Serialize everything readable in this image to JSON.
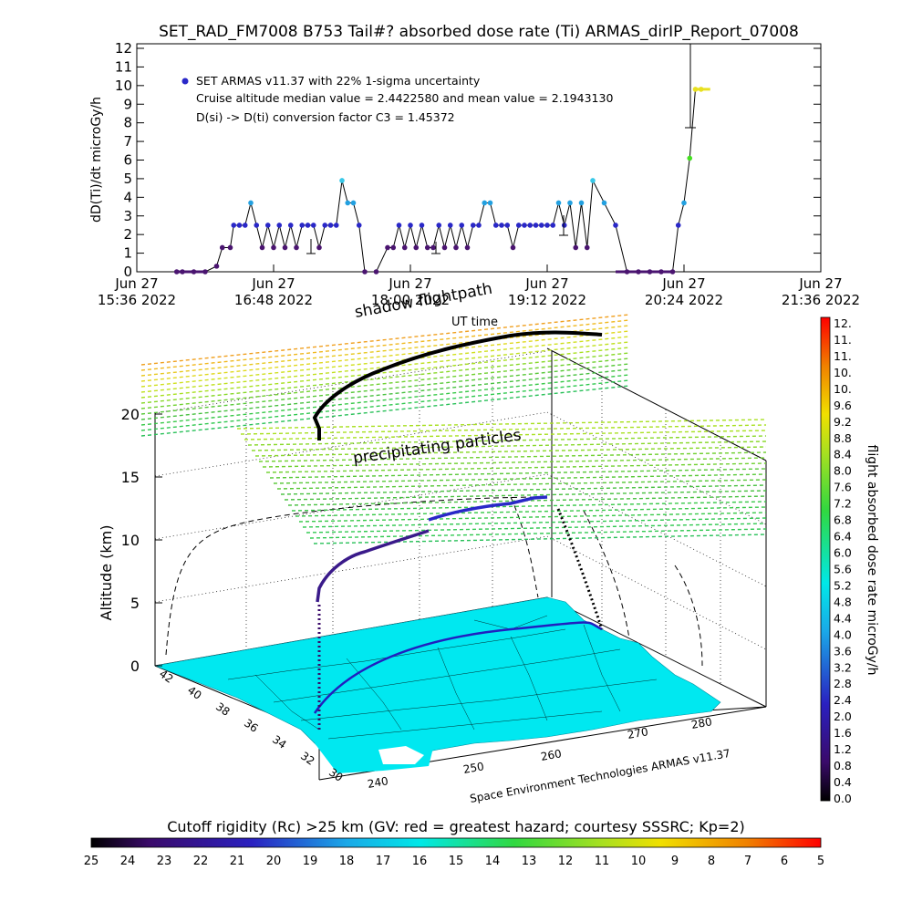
{
  "title": "SET_RAD_FM7008  B753 Tail#? absorbed dose rate (Ti) ARMAS_dirIP_Report_07008",
  "colors": {
    "flight_dark": "#202080",
    "point_blue": "#2a28c8",
    "point_purple": "#4a1470",
    "point_light": "#22b8e8",
    "point_cyan2": "#38c8e8",
    "point_green": "#44e020",
    "point_yellow": "#e8e020",
    "land": "#00e8f0",
    "axis": "#000000"
  },
  "chart_data": [
    {
      "type": "scatter",
      "ylabel": "dD(Ti)/dt microGy/h",
      "xlabel": "UT time",
      "ylim": [
        0,
        12
      ],
      "yticks": [
        "0",
        "1",
        "2",
        "3",
        "4",
        "5",
        "6",
        "7",
        "8",
        "9",
        "10",
        "11",
        "12"
      ],
      "xticks": [
        {
          "top": "Jun 27",
          "bottom": "15:36 2022"
        },
        {
          "top": "Jun 27",
          "bottom": "16:48 2022"
        },
        {
          "top": "Jun 27",
          "bottom": "18:00 2022"
        },
        {
          "top": "Jun 27",
          "bottom": "19:12 2022"
        },
        {
          "top": "Jun 27",
          "bottom": "20:24 2022"
        },
        {
          "top": "Jun 27",
          "bottom": "21:36 2022"
        }
      ],
      "xlim_hours": [
        15.6,
        21.6
      ],
      "legend": {
        "position": "top-left",
        "series_label": "SET ARMAS v11.37 with 22% 1-sigma uncertainty",
        "line2": "Cruise altitude median value = 2.4422580 and mean value = 2.1943130",
        "line3": "D(si) -> D(ti) conversion factor C3 = 1.45372"
      },
      "series": [
        {
          "x_hours": [
            15.95,
            16.0,
            16.1,
            16.2,
            16.3,
            16.35,
            16.42,
            16.45,
            16.5,
            16.55,
            16.6,
            16.65,
            16.7,
            16.75,
            16.8,
            16.85,
            16.9,
            16.95,
            17.0,
            17.05,
            17.1,
            17.15,
            17.2,
            17.25,
            17.3,
            17.35,
            17.4,
            17.45,
            17.5,
            17.55,
            17.6,
            17.7,
            17.8,
            17.85,
            17.9,
            17.95,
            18.0,
            18.05,
            18.1,
            18.15,
            18.2,
            18.25,
            18.3,
            18.35,
            18.4,
            18.45,
            18.5,
            18.55,
            18.6,
            18.65,
            18.7,
            18.75,
            18.8,
            18.85,
            18.9,
            18.95,
            19.0,
            19.05,
            19.1,
            19.15,
            19.2,
            19.25,
            19.3,
            19.35,
            19.4,
            19.45,
            19.5,
            19.55,
            19.6,
            19.7,
            19.8,
            19.9,
            20.0,
            20.1,
            20.2,
            20.3,
            20.35,
            20.4,
            20.45,
            20.5,
            20.55
          ],
          "y": [
            0,
            0,
            0,
            0,
            0.3,
            1.3,
            1.3,
            2.5,
            2.5,
            2.5,
            3.7,
            2.5,
            1.3,
            2.5,
            1.3,
            2.5,
            1.3,
            2.5,
            1.3,
            2.5,
            2.5,
            2.5,
            1.3,
            2.5,
            2.5,
            2.5,
            4.9,
            3.7,
            3.7,
            2.5,
            0,
            0,
            1.3,
            1.3,
            2.5,
            1.3,
            2.5,
            1.3,
            2.5,
            1.3,
            1.3,
            2.5,
            1.3,
            2.5,
            1.3,
            2.5,
            1.3,
            2.5,
            2.5,
            3.7,
            3.7,
            2.5,
            2.5,
            2.5,
            1.3,
            2.5,
            2.5,
            2.5,
            2.5,
            2.5,
            2.5,
            2.5,
            3.7,
            2.5,
            3.7,
            1.3,
            3.7,
            1.3,
            4.9,
            3.7,
            2.5,
            0,
            0,
            0,
            0,
            0,
            2.5,
            3.7,
            6.1,
            9.8,
            9.8
          ]
        }
      ]
    },
    {
      "type": "scatter",
      "subtype": "3d-flight-track",
      "zlabel": "Altitude (km)",
      "zticks": [
        "0",
        "5",
        "10",
        "15",
        "20"
      ],
      "lat_ticks": [
        "42",
        "40",
        "38",
        "36",
        "34",
        "32",
        "30"
      ],
      "lon_ticks": [
        "240",
        "250",
        "260",
        "270",
        "280"
      ],
      "annotations": [
        "shadow flightpath",
        "precipitating particles",
        "UT time",
        "Space Environment Technologies ARMAS v11.37"
      ]
    }
  ],
  "colorbar_right": {
    "label": "flight absorbed dose rate microGy/h",
    "ticks": [
      "12.",
      "11.",
      "11.",
      "10.",
      "10.",
      "9.6",
      "9.2",
      "8.8",
      "8.4",
      "8.0",
      "7.6",
      "7.2",
      "6.8",
      "6.4",
      "6.0",
      "5.6",
      "5.2",
      "4.8",
      "4.4",
      "4.0",
      "3.6",
      "3.2",
      "2.8",
      "2.4",
      "2.0",
      "1.6",
      "1.2",
      "0.8",
      "0.4",
      "0.0"
    ]
  },
  "colorbar_bottom": {
    "label": "Cutoff rigidity (Rc) >25 km (GV: red = greatest hazard; courtesy SSSRC; Kp=2)",
    "ticks": [
      "25",
      "24",
      "23",
      "22",
      "21",
      "20",
      "19",
      "18",
      "17",
      "16",
      "15",
      "14",
      "13",
      "12",
      "11",
      "10",
      "9",
      "8",
      "7",
      "6",
      "5"
    ]
  }
}
